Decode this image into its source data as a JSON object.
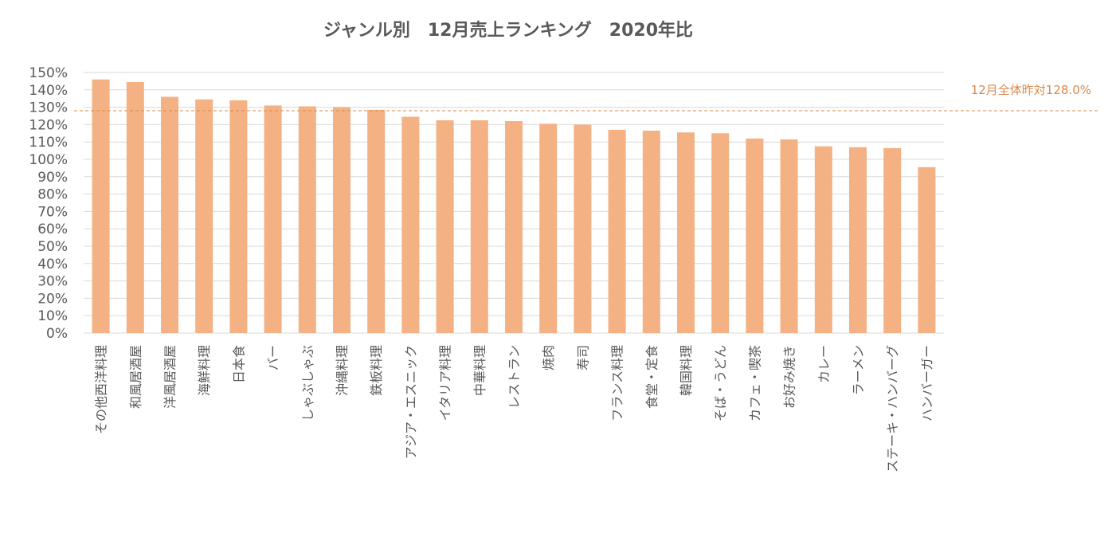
{
  "chart_data": {
    "type": "bar",
    "title": "ジャンル別　12月売上ランキング　2020年比",
    "categories": [
      "その他西洋料理",
      "和風居酒屋",
      "洋風居酒屋",
      "海鮮料理",
      "日本食",
      "バー",
      "しゃぶしゃぶ",
      "沖縄料理",
      "鉄板料理",
      "アジア・エスニック",
      "イタリア料理",
      "中華料理",
      "レストラン",
      "焼肉",
      "寿司",
      "フランス料理",
      "食堂・定食",
      "韓国料理",
      "そば・うどん",
      "カフェ・喫茶",
      "お好み焼き",
      "カレー",
      "ラーメン",
      "ステーキ・ハンバーグ",
      "ハンバーガー"
    ],
    "values": [
      146,
      144.5,
      136,
      134.5,
      134,
      131,
      130.5,
      130,
      128.5,
      124.5,
      122.5,
      122.5,
      122,
      120.5,
      120,
      117,
      116.5,
      115.5,
      115,
      112,
      111.5,
      107.5,
      107,
      106.5,
      95.5
    ],
    "yticks": [
      "0%",
      "10%",
      "20%",
      "30%",
      "40%",
      "50%",
      "60%",
      "70%",
      "80%",
      "90%",
      "100%",
      "110%",
      "120%",
      "130%",
      "140%",
      "150%"
    ],
    "ylim": [
      0,
      150
    ],
    "grid": true,
    "reference_line": {
      "value": 128,
      "label": "12月全体昨対128.0%"
    },
    "colors": {
      "bar": "#F4B183",
      "grid": "#D9D9D9",
      "reference": "#D98A4E",
      "text": "#595959"
    }
  }
}
